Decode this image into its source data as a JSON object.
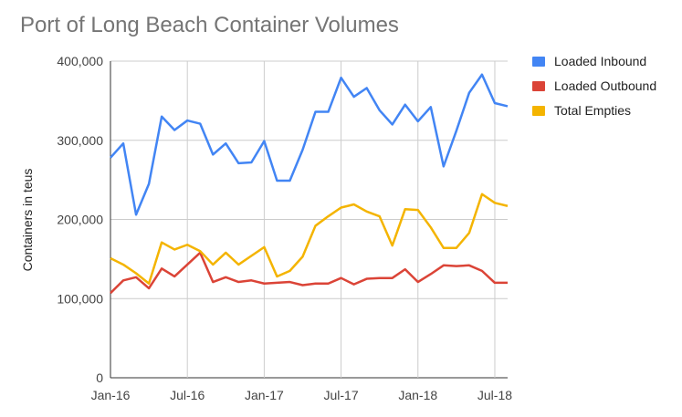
{
  "chart_data": {
    "type": "line",
    "title": "Port of Long Beach Container Volumes",
    "xlabel": "",
    "ylabel": "Containers in teus",
    "x": [
      "Jan-16",
      "Feb-16",
      "Mar-16",
      "Apr-16",
      "May-16",
      "Jun-16",
      "Jul-16",
      "Aug-16",
      "Sep-16",
      "Oct-16",
      "Nov-16",
      "Dec-16",
      "Jan-17",
      "Feb-17",
      "Mar-17",
      "Apr-17",
      "May-17",
      "Jun-17",
      "Jul-17",
      "Aug-17",
      "Sep-17",
      "Oct-17",
      "Nov-17",
      "Dec-17",
      "Jan-18",
      "Feb-18",
      "Mar-18",
      "Apr-18",
      "May-18",
      "Jun-18",
      "Jul-18",
      "Aug-18"
    ],
    "x_tick_labels": [
      "Jan-16",
      "Jul-16",
      "Jan-17",
      "Jul-17",
      "Jan-18",
      "Jul-18"
    ],
    "y_tick_labels": [
      "0",
      "100,000",
      "200,000",
      "300,000",
      "400,000"
    ],
    "ylim": [
      0,
      400000
    ],
    "grid": true,
    "legend_position": "right",
    "series": [
      {
        "name": "Loaded Inbound",
        "color": "#4285f4",
        "values": [
          278000,
          296000,
          206000,
          245000,
          330000,
          313000,
          325000,
          321000,
          282000,
          296000,
          271000,
          272000,
          299000,
          249000,
          249000,
          288000,
          336000,
          336000,
          379000,
          355000,
          366000,
          338000,
          320000,
          345000,
          324000,
          342000,
          267000,
          312000,
          360000,
          383000,
          347000,
          343000
        ]
      },
      {
        "name": "Loaded Outbound",
        "color": "#db4437",
        "values": [
          107000,
          123000,
          127000,
          113000,
          138000,
          128000,
          143000,
          158000,
          121000,
          127000,
          121000,
          123000,
          119000,
          120000,
          121000,
          117000,
          119000,
          119000,
          126000,
          118000,
          125000,
          126000,
          126000,
          137000,
          121000,
          131000,
          142000,
          141000,
          142000,
          135000,
          120000,
          120000
        ]
      },
      {
        "name": "Total Empties",
        "color": "#f4b400",
        "values": [
          151000,
          143000,
          132000,
          119000,
          171000,
          162000,
          168000,
          160000,
          143000,
          158000,
          143000,
          154000,
          165000,
          128000,
          135000,
          153000,
          192000,
          204000,
          215000,
          219000,
          210000,
          204000,
          167000,
          213000,
          212000,
          190000,
          164000,
          164000,
          183000,
          232000,
          221000,
          217000
        ]
      }
    ]
  }
}
